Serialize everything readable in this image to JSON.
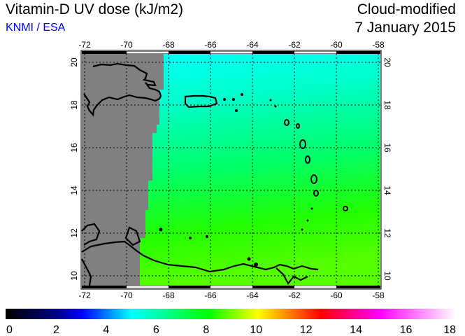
{
  "header": {
    "title": "Vitamin-D UV dose (kJ/m2)",
    "credit": "KNMI / ESA",
    "product": "Cloud-modified",
    "date": "7 January 2015"
  },
  "map": {
    "lon_ticks": [
      "-72",
      "-70",
      "-68",
      "-66",
      "-64",
      "-62",
      "-60",
      "-58"
    ],
    "lat_ticks": [
      "20",
      "18",
      "16",
      "14",
      "12",
      "10"
    ],
    "lon_values": [
      -72,
      -70,
      -68,
      -66,
      -64,
      -62,
      -60,
      -58
    ],
    "lat_values": [
      20,
      18,
      16,
      14,
      12,
      10
    ],
    "no_data_color": "#808080"
  },
  "colorbar": {
    "labels": [
      "0",
      "2",
      "4",
      "6",
      "8",
      "10",
      "12",
      "14",
      "16",
      "18"
    ],
    "min": 0,
    "max": 18,
    "colors": [
      "#000000",
      "#000080",
      "#0000ff",
      "#00ffff",
      "#00ff00",
      "#ffff00",
      "#ff0000",
      "#ff00ff",
      "#ffffff"
    ]
  }
}
